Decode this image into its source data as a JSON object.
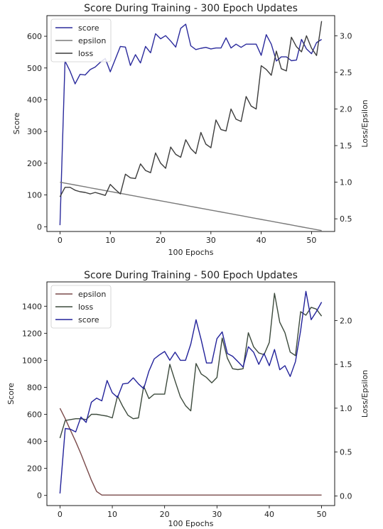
{
  "chart_data": [
    {
      "type": "line",
      "title": "Score During Training - 300 Epoch Updates",
      "xlabel": "100 Epochs",
      "ylabel": "Score",
      "y2label": "Loss/Epsilon",
      "xlim": [
        -2.6,
        54.6
      ],
      "ylim": [
        -15,
        665
      ],
      "y2lim": [
        0.327,
        3.275
      ],
      "xticks": [
        0,
        10,
        20,
        30,
        40,
        50
      ],
      "yticks": [
        0,
        100,
        200,
        300,
        400,
        500,
        600
      ],
      "y2ticks": [
        0.5,
        1.0,
        1.5,
        2.0,
        2.5,
        3.0
      ],
      "y2ticklabels": [
        "0.5",
        "1.0",
        "1.5",
        "2.0",
        "2.5",
        "3.0"
      ],
      "legend": "top-left",
      "legend_order": [
        "score",
        "epsilon",
        "loss"
      ],
      "grid": false,
      "series": [
        {
          "name": "score",
          "axis": "left",
          "color": "#2a2a9c",
          "values": [
            5,
            522,
            490,
            450,
            480,
            478,
            495,
            503,
            518,
            530,
            488,
            528,
            568,
            566,
            508,
            542,
            516,
            568,
            548,
            608,
            592,
            602,
            585,
            566,
            625,
            638,
            570,
            558,
            562,
            565,
            560,
            563,
            563,
            595,
            563,
            575,
            565,
            575,
            575,
            575,
            540,
            605,
            575,
            522,
            535,
            535,
            523,
            525,
            590,
            560,
            545,
            580,
            590
          ]
        },
        {
          "name": "epsilon",
          "axis": "right",
          "color": "#7a7a7a",
          "values": [
            1.0,
            0.9873,
            0.9746,
            0.9619,
            0.9492,
            0.9365,
            0.9238,
            0.9111,
            0.8984,
            0.8857,
            0.873,
            0.8603,
            0.8476,
            0.8349,
            0.8222,
            0.8095,
            0.7968,
            0.7841,
            0.7714,
            0.7587,
            0.746,
            0.7333,
            0.7206,
            0.7079,
            0.6952,
            0.6825,
            0.6698,
            0.6571,
            0.6444,
            0.6317,
            0.619,
            0.6063,
            0.5936,
            0.5809,
            0.5682,
            0.5555,
            0.5428,
            0.5301,
            0.5174,
            0.5047,
            0.492,
            0.4793,
            0.4666,
            0.4539,
            0.4412,
            0.4285,
            0.4158,
            0.4031,
            0.3904,
            0.3777,
            0.365,
            0.3523,
            0.34
          ]
        },
        {
          "name": "loss",
          "axis": "right",
          "color": "#3c3c3c",
          "values": [
            0.8,
            0.93,
            0.93,
            0.89,
            0.87,
            0.86,
            0.84,
            0.86,
            0.84,
            0.82,
            0.97,
            0.9,
            0.84,
            1.11,
            1.06,
            1.05,
            1.25,
            1.16,
            1.13,
            1.4,
            1.26,
            1.19,
            1.48,
            1.38,
            1.34,
            1.58,
            1.46,
            1.39,
            1.68,
            1.52,
            1.47,
            1.85,
            1.72,
            1.7,
            2.0,
            1.86,
            1.83,
            2.17,
            2.04,
            2.0,
            2.59,
            2.54,
            2.46,
            2.79,
            2.55,
            2.52,
            2.98,
            2.85,
            2.78,
            3.0,
            2.83,
            2.73,
            3.2
          ]
        }
      ]
    },
    {
      "type": "line",
      "title": "Score During Training - 500 Epoch Updates",
      "xlabel": "100 Epochs",
      "ylabel": "Score",
      "y2label": "Loss/Epsilon",
      "xlim": [
        -2.5,
        52.5
      ],
      "ylim": [
        -75,
        1580
      ],
      "y2lim": [
        -0.11,
        2.44
      ],
      "xticks": [
        0,
        10,
        20,
        30,
        40,
        50
      ],
      "yticks": [
        0,
        200,
        400,
        600,
        800,
        1000,
        1200,
        1400
      ],
      "y2ticks": [
        0.0,
        0.5,
        1.0,
        1.5,
        2.0
      ],
      "y2ticklabels": [
        "0.0",
        "0.5",
        "1.0",
        "1.5",
        "2.0"
      ],
      "legend": "top-left",
      "legend_order": [
        "epsilon",
        "loss",
        "score"
      ],
      "grid": false,
      "series": [
        {
          "name": "epsilon",
          "axis": "right",
          "color": "#7a4a4a",
          "values": [
            1.0,
            0.88,
            0.75,
            0.62,
            0.48,
            0.33,
            0.18,
            0.05,
            0.01,
            0.01,
            0.01,
            0.01,
            0.01,
            0.01,
            0.01,
            0.01,
            0.01,
            0.01,
            0.01,
            0.01,
            0.01,
            0.01,
            0.01,
            0.01,
            0.01,
            0.01,
            0.01,
            0.01,
            0.01,
            0.01,
            0.01,
            0.01,
            0.01,
            0.01,
            0.01,
            0.01,
            0.01,
            0.01,
            0.01,
            0.01,
            0.01,
            0.01,
            0.01,
            0.01,
            0.01,
            0.01,
            0.01,
            0.01,
            0.01,
            0.01,
            0.01
          ]
        },
        {
          "name": "loss",
          "axis": "right",
          "color": "#3c4a3c",
          "values": [
            0.66,
            0.86,
            0.87,
            0.88,
            0.88,
            0.87,
            0.93,
            0.93,
            0.92,
            0.91,
            0.89,
            1.14,
            1.02,
            0.92,
            0.88,
            0.89,
            1.25,
            1.11,
            1.16,
            1.16,
            1.16,
            1.5,
            1.31,
            1.13,
            1.03,
            0.97,
            1.51,
            1.39,
            1.35,
            1.29,
            1.35,
            1.8,
            1.57,
            1.45,
            1.44,
            1.45,
            1.86,
            1.7,
            1.63,
            1.61,
            1.75,
            2.31,
            1.98,
            1.86,
            1.64,
            1.6,
            2.1,
            2.06,
            2.15,
            2.13,
            2.05
          ]
        },
        {
          "name": "score",
          "axis": "left",
          "color": "#22229a",
          "values": [
            15,
            495,
            490,
            470,
            580,
            540,
            690,
            720,
            700,
            850,
            760,
            725,
            825,
            830,
            870,
            825,
            790,
            920,
            1010,
            1040,
            1065,
            1000,
            1060,
            1000,
            1000,
            1120,
            1300,
            1150,
            980,
            980,
            1160,
            1210,
            1050,
            1030,
            990,
            950,
            1100,
            1060,
            970,
            1050,
            960,
            1080,
            930,
            960,
            880,
            990,
            1220,
            1510,
            1300,
            1360,
            1430
          ]
        }
      ]
    }
  ]
}
